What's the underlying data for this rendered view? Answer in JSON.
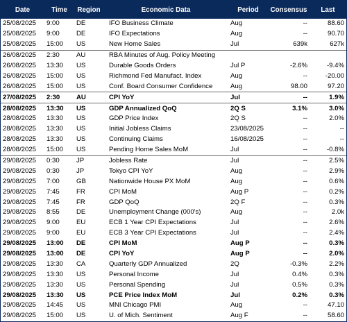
{
  "headers": {
    "date": "Date",
    "time": "Time",
    "region": "Region",
    "event": "Economic Data",
    "period": "Period",
    "consensus": "Consensus",
    "last": "Last"
  },
  "rows": [
    {
      "date": "25/08/2025",
      "time": "9:00",
      "region": "DE",
      "event": "IFO Business Climate",
      "period": "Aug",
      "consensus": "--",
      "last": "88.60",
      "bold": false,
      "sep": false
    },
    {
      "date": "25/08/2025",
      "time": "9:00",
      "region": "DE",
      "event": "IFO Expectations",
      "period": "Aug",
      "consensus": "--",
      "last": "90.70",
      "bold": false,
      "sep": false
    },
    {
      "date": "25/08/2025",
      "time": "15:00",
      "region": "US",
      "event": "New Home Sales",
      "period": "Jul",
      "consensus": "639k",
      "last": "627k",
      "bold": false,
      "sep": false
    },
    {
      "date": "26/08/2025",
      "time": "2:30",
      "region": "AU",
      "event": "RBA Minutes of Aug. Policy Meeting",
      "period": "",
      "consensus": "",
      "last": "",
      "bold": false,
      "sep": true
    },
    {
      "date": "26/08/2025",
      "time": "13:30",
      "region": "US",
      "event": "Durable Goods Orders",
      "period": "Jul P",
      "consensus": "-2.6%",
      "last": "-9.4%",
      "bold": false,
      "sep": false
    },
    {
      "date": "26/08/2025",
      "time": "15:00",
      "region": "US",
      "event": "Richmond Fed Manufact. Index",
      "period": "Aug",
      "consensus": "--",
      "last": "-20.00",
      "bold": false,
      "sep": false
    },
    {
      "date": "26/08/2025",
      "time": "15:00",
      "region": "US",
      "event": "Conf. Board Consumer Confidence",
      "period": "Aug",
      "consensus": "98.00",
      "last": "97.20",
      "bold": false,
      "sep": false
    },
    {
      "date": "27/08/2025",
      "time": "2:30",
      "region": "AU",
      "event": "CPI YoY",
      "period": "Jul",
      "consensus": "--",
      "last": "1.9%",
      "bold": true,
      "sep": true
    },
    {
      "date": "28/08/2025",
      "time": "13:30",
      "region": "US",
      "event": "GDP Annualized QoQ",
      "period": "2Q S",
      "consensus": "3.1%",
      "last": "3.0%",
      "bold": true,
      "sep": true
    },
    {
      "date": "28/08/2025",
      "time": "13:30",
      "region": "US",
      "event": "GDP Price Index",
      "period": "2Q S",
      "consensus": "--",
      "last": "2.0%",
      "bold": false,
      "sep": false
    },
    {
      "date": "28/08/2025",
      "time": "13:30",
      "region": "US",
      "event": "Initial Jobless Claims",
      "period": "23/08/2025",
      "consensus": "--",
      "last": "--",
      "bold": false,
      "sep": false
    },
    {
      "date": "28/08/2025",
      "time": "13:30",
      "region": "US",
      "event": "Continuing Claims",
      "period": "16/08/2025",
      "consensus": "--",
      "last": "--",
      "bold": false,
      "sep": false
    },
    {
      "date": "28/08/2025",
      "time": "15:00",
      "region": "US",
      "event": "Pending Home Sales MoM",
      "period": "Jul",
      "consensus": "--",
      "last": "-0.8%",
      "bold": false,
      "sep": false
    },
    {
      "date": "29/08/2025",
      "time": "0:30",
      "region": "JP",
      "event": "Jobless Rate",
      "period": "Jul",
      "consensus": "--",
      "last": "2.5%",
      "bold": false,
      "sep": true
    },
    {
      "date": "29/08/2025",
      "time": "0:30",
      "region": "JP",
      "event": "Tokyo CPI YoY",
      "period": "Aug",
      "consensus": "--",
      "last": "2.9%",
      "bold": false,
      "sep": false
    },
    {
      "date": "29/08/2025",
      "time": "7:00",
      "region": "GB",
      "event": "Nationwide House PX MoM",
      "period": "Aug",
      "consensus": "--",
      "last": "0.6%",
      "bold": false,
      "sep": false
    },
    {
      "date": "29/08/2025",
      "time": "7:45",
      "region": "FR",
      "event": "CPI MoM",
      "period": "Aug P",
      "consensus": "--",
      "last": "0.2%",
      "bold": false,
      "sep": false
    },
    {
      "date": "29/08/2025",
      "time": "7:45",
      "region": "FR",
      "event": "GDP QoQ",
      "period": "2Q F",
      "consensus": "--",
      "last": "0.3%",
      "bold": false,
      "sep": false
    },
    {
      "date": "29/08/2025",
      "time": "8:55",
      "region": "DE",
      "event": "Unemployment Change (000's)",
      "period": "Aug",
      "consensus": "--",
      "last": "2.0k",
      "bold": false,
      "sep": false
    },
    {
      "date": "29/08/2025",
      "time": "9:00",
      "region": "EU",
      "event": "ECB 1 Year CPI Expectations",
      "period": "Jul",
      "consensus": "--",
      "last": "2.6%",
      "bold": false,
      "sep": false
    },
    {
      "date": "29/08/2025",
      "time": "9:00",
      "region": "EU",
      "event": "ECB 3 Year CPI Expectations",
      "period": "Jul",
      "consensus": "--",
      "last": "2.4%",
      "bold": false,
      "sep": false
    },
    {
      "date": "29/08/2025",
      "time": "13:00",
      "region": "DE",
      "event": "CPI MoM",
      "period": "Aug P",
      "consensus": "--",
      "last": "0.3%",
      "bold": true,
      "sep": false
    },
    {
      "date": "29/08/2025",
      "time": "13:00",
      "region": "DE",
      "event": "CPI YoY",
      "period": "Aug P",
      "consensus": "--",
      "last": "2.0%",
      "bold": true,
      "sep": false
    },
    {
      "date": "29/08/2025",
      "time": "13:30",
      "region": "CA",
      "event": "Quarterly GDP Annualized",
      "period": "2Q",
      "consensus": "-0.3%",
      "last": "2.2%",
      "bold": false,
      "sep": false
    },
    {
      "date": "29/08/2025",
      "time": "13:30",
      "region": "US",
      "event": "Personal Income",
      "period": "Jul",
      "consensus": "0.4%",
      "last": "0.3%",
      "bold": false,
      "sep": false
    },
    {
      "date": "29/08/2025",
      "time": "13:30",
      "region": "US",
      "event": "Personal Spending",
      "period": "Jul",
      "consensus": "0.5%",
      "last": "0.3%",
      "bold": false,
      "sep": false
    },
    {
      "date": "29/08/2025",
      "time": "13:30",
      "region": "US",
      "event": "PCE Price Index MoM",
      "period": "Jul",
      "consensus": "0.2%",
      "last": "0.3%",
      "bold": true,
      "sep": false
    },
    {
      "date": "29/08/2025",
      "time": "14:45",
      "region": "US",
      "event": "MNI Chicago PMI",
      "period": "Aug",
      "consensus": "--",
      "last": "47.10",
      "bold": false,
      "sep": false
    },
    {
      "date": "29/08/2025",
      "time": "15:00",
      "region": "US",
      "event": "U. of Mich. Sentiment",
      "period": "Aug F",
      "consensus": "--",
      "last": "58.60",
      "bold": false,
      "sep": false
    }
  ]
}
